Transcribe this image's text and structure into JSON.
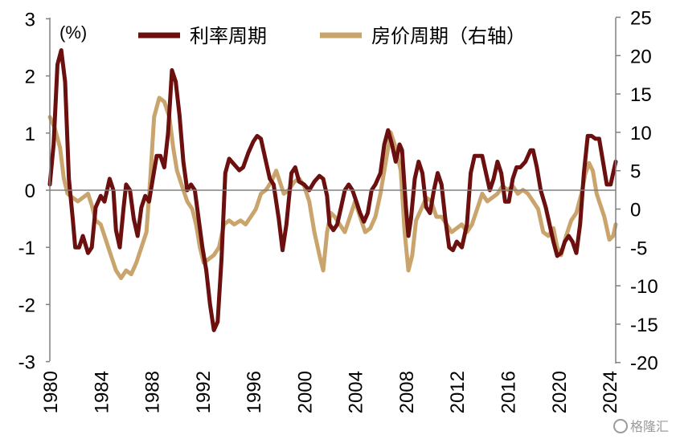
{
  "colors": {
    "rate": "#6B0F0F",
    "house": "#C9A46C",
    "axis": "#808080",
    "text": "#000000"
  },
  "watermark": "格隆汇",
  "chart_data": {
    "type": "line",
    "unit_label": "(%)",
    "x_ticks": [
      "1980",
      "1984",
      "1988",
      "1992",
      "1996",
      "2000",
      "2004",
      "2008",
      "2012",
      "2016",
      "2020",
      "2024"
    ],
    "xlim": [
      1980,
      2024.5
    ],
    "y_left_ticks": [
      "3",
      "2",
      "1",
      "0",
      "-1",
      "-2",
      "-3"
    ],
    "y_left_lim": [
      -3,
      3
    ],
    "y_right_ticks": [
      "25",
      "20",
      "15",
      "10",
      "5",
      "0",
      "-5",
      "-10",
      "-15",
      "-20"
    ],
    "y_right_lim": [
      -20,
      25
    ],
    "legend": {
      "position": "top",
      "entries": [
        "利率周期",
        "房价周期（右轴）"
      ]
    },
    "series": [
      {
        "name": "利率周期",
        "axis": "left",
        "points": [
          [
            1980,
            0.1
          ],
          [
            1980.3,
            0.8
          ],
          [
            1980.6,
            2.2
          ],
          [
            1980.9,
            2.45
          ],
          [
            1981.2,
            1.9
          ],
          [
            1981.5,
            0.2
          ],
          [
            1981.8,
            -0.5
          ],
          [
            1982,
            -1.0
          ],
          [
            1982.3,
            -1.0
          ],
          [
            1982.6,
            -0.8
          ],
          [
            1983,
            -1.1
          ],
          [
            1983.3,
            -1.0
          ],
          [
            1983.6,
            -0.3
          ],
          [
            1984,
            -0.1
          ],
          [
            1984.3,
            -0.2
          ],
          [
            1984.7,
            0.2
          ],
          [
            1985,
            0.0
          ],
          [
            1985.2,
            -0.7
          ],
          [
            1985.5,
            -1.0
          ],
          [
            1985.8,
            -0.3
          ],
          [
            1986,
            0.1
          ],
          [
            1986.3,
            0.0
          ],
          [
            1986.6,
            -0.5
          ],
          [
            1986.9,
            -0.8
          ],
          [
            1987.2,
            -0.3
          ],
          [
            1987.5,
            -0.1
          ],
          [
            1987.8,
            -0.2
          ],
          [
            1988.1,
            0.2
          ],
          [
            1988.4,
            0.6
          ],
          [
            1988.7,
            0.6
          ],
          [
            1989,
            0.4
          ],
          [
            1989.3,
            1.0
          ],
          [
            1989.6,
            2.1
          ],
          [
            1989.9,
            1.9
          ],
          [
            1990.2,
            1.3
          ],
          [
            1990.5,
            0.5
          ],
          [
            1990.8,
            0.0
          ],
          [
            1991.1,
            0.1
          ],
          [
            1991.4,
            0.0
          ],
          [
            1991.7,
            -0.5
          ],
          [
            1992,
            -1.0
          ],
          [
            1992.3,
            -1.4
          ],
          [
            1992.6,
            -2.0
          ],
          [
            1992.9,
            -2.45
          ],
          [
            1993.2,
            -2.3
          ],
          [
            1993.5,
            -1.2
          ],
          [
            1993.8,
            0.3
          ],
          [
            1994.1,
            0.55
          ],
          [
            1994.5,
            0.45
          ],
          [
            1994.9,
            0.35
          ],
          [
            1995.2,
            0.4
          ],
          [
            1995.6,
            0.65
          ],
          [
            1996,
            0.85
          ],
          [
            1996.3,
            0.95
          ],
          [
            1996.6,
            0.9
          ],
          [
            1997,
            0.5
          ],
          [
            1997.3,
            0.2
          ],
          [
            1997.6,
            0.1
          ],
          [
            1998,
            -0.5
          ],
          [
            1998.3,
            -1.05
          ],
          [
            1998.6,
            -0.6
          ],
          [
            1999,
            0.3
          ],
          [
            1999.3,
            0.4
          ],
          [
            1999.6,
            0.15
          ],
          [
            2000,
            0.1
          ],
          [
            2000.4,
            0.0
          ],
          [
            2000.8,
            0.15
          ],
          [
            2001.2,
            0.25
          ],
          [
            2001.5,
            0.2
          ],
          [
            2001.8,
            -0.1
          ],
          [
            2002,
            -0.6
          ],
          [
            2002.3,
            -0.7
          ],
          [
            2002.6,
            -0.6
          ],
          [
            2002.9,
            -0.3
          ],
          [
            2003.2,
            0.0
          ],
          [
            2003.5,
            0.1
          ],
          [
            2003.8,
            0.0
          ],
          [
            2004.1,
            -0.2
          ],
          [
            2004.4,
            -0.4
          ],
          [
            2004.7,
            -0.55
          ],
          [
            2005,
            -0.4
          ],
          [
            2005.3,
            0.0
          ],
          [
            2005.6,
            0.1
          ],
          [
            2006,
            0.3
          ],
          [
            2006.3,
            0.8
          ],
          [
            2006.6,
            1.05
          ],
          [
            2006.9,
            0.8
          ],
          [
            2007.2,
            0.5
          ],
          [
            2007.5,
            0.8
          ],
          [
            2007.7,
            0.7
          ],
          [
            2008,
            -0.3
          ],
          [
            2008.2,
            -0.8
          ],
          [
            2008.4,
            -0.5
          ],
          [
            2008.7,
            0.2
          ],
          [
            2009,
            0.5
          ],
          [
            2009.3,
            0.3
          ],
          [
            2009.6,
            -0.3
          ],
          [
            2009.9,
            -0.4
          ],
          [
            2010.2,
            0.0
          ],
          [
            2010.5,
            0.3
          ],
          [
            2010.8,
            0.1
          ],
          [
            2011.1,
            -0.5
          ],
          [
            2011.4,
            -1.0
          ],
          [
            2011.7,
            -1.05
          ],
          [
            2012,
            -0.9
          ],
          [
            2012.4,
            -1.0
          ],
          [
            2012.8,
            -0.6
          ],
          [
            2013.1,
            0.3
          ],
          [
            2013.4,
            0.6
          ],
          [
            2013.7,
            0.6
          ],
          [
            2014,
            0.6
          ],
          [
            2014.3,
            0.3
          ],
          [
            2014.6,
            0.0
          ],
          [
            2014.9,
            0.2
          ],
          [
            2015.2,
            0.5
          ],
          [
            2015.5,
            0.3
          ],
          [
            2015.8,
            -0.2
          ],
          [
            2016.1,
            -0.2
          ],
          [
            2016.4,
            0.2
          ],
          [
            2016.7,
            0.4
          ],
          [
            2017,
            0.4
          ],
          [
            2017.4,
            0.5
          ],
          [
            2017.8,
            0.7
          ],
          [
            2018,
            0.7
          ],
          [
            2018.3,
            0.4
          ],
          [
            2018.6,
            0.0
          ],
          [
            2019,
            -0.3
          ],
          [
            2019.3,
            -0.6
          ],
          [
            2019.6,
            -0.9
          ],
          [
            2019.9,
            -1.15
          ],
          [
            2020.2,
            -1.1
          ],
          [
            2020.5,
            -0.9
          ],
          [
            2020.8,
            -0.8
          ],
          [
            2021.1,
            -0.9
          ],
          [
            2021.4,
            -1.1
          ],
          [
            2021.7,
            -0.6
          ],
          [
            2022,
            0.3
          ],
          [
            2022.3,
            0.95
          ],
          [
            2022.6,
            0.95
          ],
          [
            2022.9,
            0.9
          ],
          [
            2023.2,
            0.9
          ],
          [
            2023.5,
            0.5
          ],
          [
            2023.8,
            0.1
          ],
          [
            2024.1,
            0.1
          ],
          [
            2024.4,
            0.4
          ],
          [
            2024.5,
            0.5
          ]
        ]
      },
      {
        "name": "房价周期（右轴）",
        "axis": "right",
        "points": [
          [
            1980,
            12.0
          ],
          [
            1980.4,
            10.5
          ],
          [
            1980.8,
            8.0
          ],
          [
            1981.1,
            4.0
          ],
          [
            1981.4,
            2.0
          ],
          [
            1981.8,
            1.5
          ],
          [
            1982.2,
            1.0
          ],
          [
            1982.6,
            1.5
          ],
          [
            1983,
            2.0
          ],
          [
            1983.3,
            0.5
          ],
          [
            1983.6,
            -1.5
          ],
          [
            1984,
            -2.0
          ],
          [
            1984.4,
            -4.0
          ],
          [
            1984.8,
            -6.0
          ],
          [
            1985.2,
            -8.0
          ],
          [
            1985.6,
            -9.0
          ],
          [
            1986,
            -8.0
          ],
          [
            1986.4,
            -8.5
          ],
          [
            1986.8,
            -7.0
          ],
          [
            1987.2,
            -5.0
          ],
          [
            1987.6,
            -3.0
          ],
          [
            1987.9,
            4.0
          ],
          [
            1988.2,
            12.0
          ],
          [
            1988.6,
            14.5
          ],
          [
            1989,
            14.0
          ],
          [
            1989.4,
            12.0
          ],
          [
            1989.7,
            8.0
          ],
          [
            1990,
            5.0
          ],
          [
            1990.4,
            3.0
          ],
          [
            1990.8,
            1.0
          ],
          [
            1991.2,
            0.0
          ],
          [
            1991.5,
            -2.0
          ],
          [
            1991.8,
            -5.0
          ],
          [
            1992.1,
            -7.0
          ],
          [
            1992.5,
            -6.5
          ],
          [
            1992.9,
            -6.0
          ],
          [
            1993.3,
            -5.0
          ],
          [
            1993.7,
            -2.0
          ],
          [
            1994.1,
            -1.5
          ],
          [
            1994.5,
            -2.0
          ],
          [
            1995,
            -1.5
          ],
          [
            1995.4,
            -2.0
          ],
          [
            1995.8,
            -1.0
          ],
          [
            1996.2,
            0.0
          ],
          [
            1996.6,
            2.0
          ],
          [
            1997,
            2.5
          ],
          [
            1997.4,
            3.5
          ],
          [
            1997.8,
            5.0
          ],
          [
            1998,
            4.0
          ],
          [
            1998.4,
            2.0
          ],
          [
            1998.8,
            2.5
          ],
          [
            1999.2,
            3.5
          ],
          [
            1999.6,
            4.0
          ],
          [
            2000,
            3.0
          ],
          [
            2000.4,
            1.0
          ],
          [
            2000.8,
            -3.0
          ],
          [
            2001.2,
            -6.0
          ],
          [
            2001.5,
            -8.0
          ],
          [
            2001.8,
            -3.0
          ],
          [
            2002.1,
            -0.5
          ],
          [
            2002.4,
            -1.0
          ],
          [
            2002.8,
            -2.0
          ],
          [
            2003.2,
            -3.0
          ],
          [
            2003.6,
            -1.0
          ],
          [
            2004,
            1.0
          ],
          [
            2004.4,
            -1.0
          ],
          [
            2004.8,
            -3.0
          ],
          [
            2005.2,
            -2.5
          ],
          [
            2005.6,
            -1.0
          ],
          [
            2006,
            2.0
          ],
          [
            2006.4,
            6.0
          ],
          [
            2006.8,
            10.0
          ],
          [
            2007.2,
            8.0
          ],
          [
            2007.6,
            5.0
          ],
          [
            2007.9,
            -3.0
          ],
          [
            2008.2,
            -8.0
          ],
          [
            2008.5,
            -6.0
          ],
          [
            2008.8,
            -1.5
          ],
          [
            2009.2,
            0.0
          ],
          [
            2009.6,
            1.5
          ],
          [
            2010,
            1.0
          ],
          [
            2010.4,
            -1.0
          ],
          [
            2010.8,
            -1.0
          ],
          [
            2011.2,
            -2.0
          ],
          [
            2011.6,
            -3.0
          ],
          [
            2012,
            -2.5
          ],
          [
            2012.4,
            -2.0
          ],
          [
            2012.8,
            -3.0
          ],
          [
            2013.2,
            -2.0
          ],
          [
            2013.6,
            0.0
          ],
          [
            2014,
            2.0
          ],
          [
            2014.4,
            1.0
          ],
          [
            2014.8,
            1.5
          ],
          [
            2015.2,
            2.0
          ],
          [
            2015.6,
            3.0
          ],
          [
            2016,
            2.5
          ],
          [
            2016.4,
            3.0
          ],
          [
            2016.8,
            2.0
          ],
          [
            2017.2,
            2.5
          ],
          [
            2017.6,
            2.0
          ],
          [
            2018,
            1.0
          ],
          [
            2018.4,
            0.0
          ],
          [
            2018.8,
            -3.0
          ],
          [
            2019.2,
            -3.5
          ],
          [
            2019.6,
            -2.5
          ],
          [
            2019.9,
            -5.0
          ],
          [
            2020.2,
            -6.0
          ],
          [
            2020.6,
            -3.5
          ],
          [
            2021,
            -1.5
          ],
          [
            2021.4,
            -0.5
          ],
          [
            2021.8,
            2.0
          ],
          [
            2022.1,
            4.5
          ],
          [
            2022.4,
            6.0
          ],
          [
            2022.7,
            5.0
          ],
          [
            2023,
            2.0
          ],
          [
            2023.3,
            0.5
          ],
          [
            2023.6,
            -1.0
          ],
          [
            2024,
            -4.0
          ],
          [
            2024.3,
            -3.5
          ],
          [
            2024.5,
            -2.0
          ]
        ]
      }
    ]
  }
}
